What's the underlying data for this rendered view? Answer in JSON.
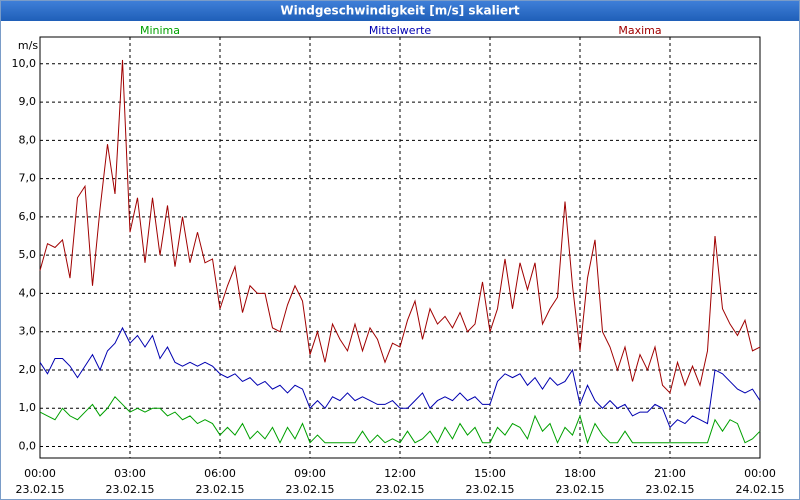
{
  "chart_data": {
    "type": "line",
    "title": "Windgeschwindigkeit [m/s] skaliert",
    "y_label": "m/s",
    "grid": true,
    "legend": "top",
    "xlim": [
      0,
      24
    ],
    "ylim": [
      -0.3,
      10.7
    ],
    "yticks": [
      {
        "value": 0,
        "label": "0,0"
      },
      {
        "value": 1,
        "label": "1,0"
      },
      {
        "value": 2,
        "label": "2,0"
      },
      {
        "value": 3,
        "label": "3,0"
      },
      {
        "value": 4,
        "label": "4,0"
      },
      {
        "value": 5,
        "label": "5,0"
      },
      {
        "value": 6,
        "label": "6,0"
      },
      {
        "value": 7,
        "label": "7,0"
      },
      {
        "value": 8,
        "label": "8,0"
      },
      {
        "value": 9,
        "label": "9,0"
      },
      {
        "value": 10,
        "label": "10,0"
      }
    ],
    "xticks": [
      {
        "value": 0,
        "label": [
          "00:00",
          "23.02.15"
        ]
      },
      {
        "value": 3,
        "label": [
          "03:00",
          "23.02.15"
        ]
      },
      {
        "value": 6,
        "label": [
          "06:00",
          "23.02.15"
        ]
      },
      {
        "value": 9,
        "label": [
          "09:00",
          "23.02.15"
        ]
      },
      {
        "value": 12,
        "label": [
          "12:00",
          "23.02.15"
        ]
      },
      {
        "value": 15,
        "label": [
          "15:00",
          "23.02.15"
        ]
      },
      {
        "value": 18,
        "label": [
          "18:00",
          "23.02.15"
        ]
      },
      {
        "value": 21,
        "label": [
          "21:00",
          "23.02.15"
        ]
      },
      {
        "value": 24,
        "label": [
          "00:00",
          "24.02.15"
        ]
      }
    ],
    "x": [
      0,
      0.25,
      0.5,
      0.75,
      1,
      1.25,
      1.5,
      1.75,
      2,
      2.25,
      2.5,
      2.75,
      3,
      3.25,
      3.5,
      3.75,
      4,
      4.25,
      4.5,
      4.75,
      5,
      5.25,
      5.5,
      5.75,
      6,
      6.25,
      6.5,
      6.75,
      7,
      7.25,
      7.5,
      7.75,
      8,
      8.25,
      8.5,
      8.75,
      9,
      9.25,
      9.5,
      9.75,
      10,
      10.25,
      10.5,
      10.75,
      11,
      11.25,
      11.5,
      11.75,
      12,
      12.25,
      12.5,
      12.75,
      13,
      13.25,
      13.5,
      13.75,
      14,
      14.25,
      14.5,
      14.75,
      15,
      15.25,
      15.5,
      15.75,
      16,
      16.25,
      16.5,
      16.75,
      17,
      17.25,
      17.5,
      17.75,
      18,
      18.25,
      18.5,
      18.75,
      19,
      19.25,
      19.5,
      19.75,
      20,
      20.25,
      20.5,
      20.75,
      21,
      21.25,
      21.5,
      21.75,
      22,
      22.25,
      22.5,
      22.75,
      23,
      23.25,
      23.5,
      23.75,
      24
    ],
    "series": [
      {
        "name": "Minima",
        "color": "#00a000",
        "values": [
          0.9,
          0.8,
          0.7,
          1.0,
          0.8,
          0.7,
          0.9,
          1.1,
          0.8,
          1.0,
          1.3,
          1.1,
          0.9,
          1.0,
          0.9,
          1.0,
          1.0,
          0.8,
          0.9,
          0.7,
          0.8,
          0.6,
          0.7,
          0.6,
          0.3,
          0.5,
          0.3,
          0.6,
          0.2,
          0.4,
          0.2,
          0.5,
          0.1,
          0.5,
          0.2,
          0.6,
          0.1,
          0.3,
          0.1,
          0.1,
          0.1,
          0.1,
          0.1,
          0.4,
          0.1,
          0.3,
          0.1,
          0.2,
          0.1,
          0.4,
          0.1,
          0.2,
          0.4,
          0.1,
          0.5,
          0.2,
          0.6,
          0.3,
          0.5,
          0.1,
          0.1,
          0.5,
          0.3,
          0.6,
          0.5,
          0.2,
          0.8,
          0.4,
          0.6,
          0.1,
          0.5,
          0.3,
          0.8,
          0.1,
          0.6,
          0.3,
          0.1,
          0.1,
          0.4,
          0.1,
          0.1,
          0.1,
          0.1,
          0.1,
          0.1,
          0.1,
          0.1,
          0.1,
          0.1,
          0.1,
          0.7,
          0.4,
          0.7,
          0.6,
          0.1,
          0.2,
          0.4
        ]
      },
      {
        "name": "Mittelwerte",
        "color": "#0000b0",
        "values": [
          2.2,
          1.9,
          2.3,
          2.3,
          2.1,
          1.8,
          2.1,
          2.4,
          2.0,
          2.5,
          2.7,
          3.1,
          2.7,
          2.9,
          2.6,
          2.9,
          2.3,
          2.6,
          2.2,
          2.1,
          2.2,
          2.1,
          2.2,
          2.1,
          1.9,
          1.8,
          1.9,
          1.7,
          1.8,
          1.6,
          1.7,
          1.5,
          1.6,
          1.4,
          1.6,
          1.5,
          1.0,
          1.2,
          1.0,
          1.3,
          1.2,
          1.4,
          1.2,
          1.3,
          1.2,
          1.1,
          1.1,
          1.2,
          1.0,
          1.0,
          1.2,
          1.4,
          1.0,
          1.2,
          1.3,
          1.2,
          1.4,
          1.2,
          1.3,
          1.1,
          1.1,
          1.7,
          1.9,
          1.8,
          1.9,
          1.6,
          1.8,
          1.5,
          1.8,
          1.6,
          1.7,
          2.0,
          1.1,
          1.6,
          1.2,
          1.0,
          1.2,
          1.0,
          1.1,
          0.8,
          0.9,
          0.9,
          1.1,
          1.0,
          0.5,
          0.7,
          0.6,
          0.8,
          0.7,
          0.6,
          2.0,
          1.9,
          1.7,
          1.5,
          1.4,
          1.5,
          1.2
        ]
      },
      {
        "name": "Maxima",
        "color": "#a00000",
        "values": [
          4.6,
          5.3,
          5.2,
          5.4,
          4.4,
          6.5,
          6.8,
          4.2,
          6.2,
          7.9,
          6.6,
          10.1,
          5.6,
          6.5,
          4.8,
          6.5,
          5.0,
          6.3,
          4.7,
          6.0,
          4.8,
          5.6,
          4.8,
          4.9,
          3.6,
          4.2,
          4.7,
          3.5,
          4.2,
          4.0,
          4.0,
          3.1,
          3.0,
          3.7,
          4.2,
          3.8,
          2.4,
          3.0,
          2.2,
          3.2,
          2.8,
          2.5,
          3.2,
          2.5,
          3.1,
          2.8,
          2.2,
          2.7,
          2.6,
          3.3,
          3.8,
          2.8,
          3.6,
          3.2,
          3.4,
          3.1,
          3.5,
          3.0,
          3.2,
          4.3,
          3.0,
          3.6,
          4.9,
          3.6,
          4.8,
          4.1,
          4.8,
          3.2,
          3.6,
          3.9,
          6.4,
          4.2,
          2.5,
          4.4,
          5.4,
          3.0,
          2.6,
          2.0,
          2.6,
          1.7,
          2.4,
          2.0,
          2.6,
          1.6,
          1.4,
          2.2,
          1.6,
          2.1,
          1.6,
          2.5,
          5.5,
          3.6,
          3.2,
          2.9,
          3.3,
          2.5,
          2.6
        ]
      }
    ]
  }
}
